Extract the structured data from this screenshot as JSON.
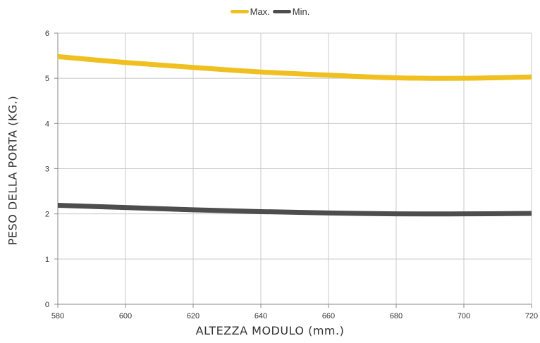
{
  "chart_data": {
    "type": "line",
    "xlabel": "ALTEZZA MODULO (mm.)",
    "ylabel": "PESO DELLA PORTA (KG.)",
    "x": [
      580,
      600,
      620,
      640,
      660,
      680,
      700,
      720
    ],
    "xticks": [
      "580",
      "600",
      "620",
      "640",
      "660",
      "680",
      "700",
      "720"
    ],
    "yticks": [
      "0",
      "1",
      "2",
      "3",
      "4",
      "5",
      "6"
    ],
    "xlim": [
      580,
      720
    ],
    "ylim": [
      0,
      6
    ],
    "grid": true,
    "legend_position": "top-center",
    "series": [
      {
        "name": "Max.",
        "color": "#f0c020",
        "values": [
          5.48,
          5.35,
          5.24,
          5.14,
          5.07,
          5.01,
          5.0,
          5.03
        ]
      },
      {
        "name": "Min.",
        "color": "#4d4d4d",
        "values": [
          2.19,
          2.14,
          2.09,
          2.05,
          2.02,
          2.0,
          2.0,
          2.01
        ]
      }
    ]
  }
}
